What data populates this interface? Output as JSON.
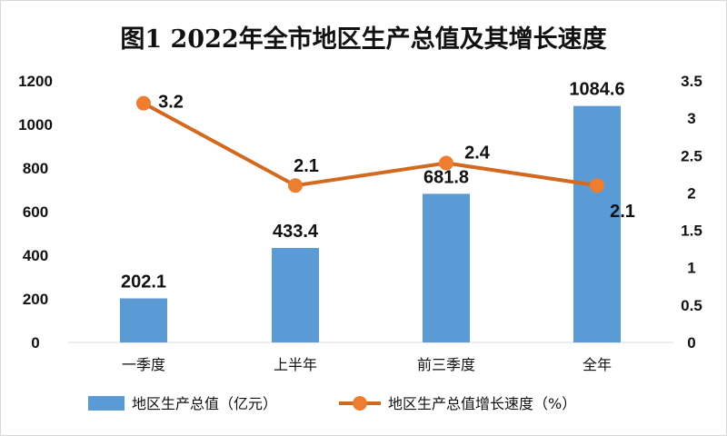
{
  "chart_data": {
    "type": "bar+line",
    "title": "图1  2022年全市地区生产总值及其增长速度",
    "categories": [
      "一季度",
      "上半年",
      "前三季度",
      "全年"
    ],
    "series": [
      {
        "name": "地区生产总值（亿元）",
        "type": "bar",
        "axis": "left",
        "color": "#5b9bd5",
        "values": [
          202.1,
          433.4,
          681.8,
          1084.6
        ],
        "labels": [
          "202.1",
          "433.4",
          "681.8",
          "1084.6"
        ]
      },
      {
        "name": "地区生产总值增长速度（%）",
        "type": "line",
        "axis": "right",
        "color": "#d2691e",
        "marker_color": "#ed7d31",
        "values": [
          3.2,
          2.1,
          2.4,
          2.1
        ],
        "labels": [
          "3.2",
          "2.1",
          "2.4",
          "2.1"
        ]
      }
    ],
    "y_left": {
      "range": [
        0,
        1200
      ],
      "ticks": [
        "0",
        "200",
        "400",
        "600",
        "800",
        "1000",
        "1200"
      ]
    },
    "y_right": {
      "range": [
        0,
        3.5
      ],
      "ticks": [
        "0",
        "0.5",
        "1",
        "1.5",
        "2",
        "2.5",
        "3",
        "3.5"
      ]
    },
    "grid": false,
    "legend": "bottom"
  }
}
